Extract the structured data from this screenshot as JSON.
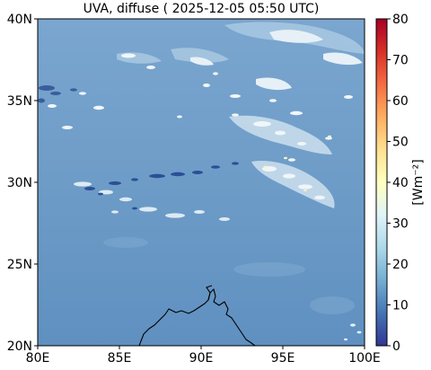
{
  "title": "UVA, diffuse ( 2025-12-05 05:50 UTC)",
  "map": {
    "x_ticks": [
      "80E",
      "85E",
      "90E",
      "95E",
      "100E"
    ],
    "y_ticks": [
      "20N",
      "25N",
      "30N",
      "35N",
      "40N"
    ],
    "lon_range": [
      80,
      100
    ],
    "lat_range": [
      20,
      40
    ]
  },
  "colorbar": {
    "label": "[Wm⁻²]",
    "ticks": [
      "0",
      "10",
      "20",
      "30",
      "40",
      "50",
      "60",
      "70",
      "80"
    ],
    "range": [
      0,
      80
    ],
    "colormap": "RdYlBu_r",
    "colors": [
      "#313695",
      "#4575b4",
      "#74add1",
      "#abd9e9",
      "#e0f3f8",
      "#ffffbf",
      "#fee090",
      "#fdae61",
      "#f46d43",
      "#d73027",
      "#a50026"
    ]
  },
  "colors": {
    "field_base": "#6b9bc6",
    "cloud_bright": "#eef5f8",
    "cloud_mid": "#bcd6e8",
    "shadow_dark": "#2c4f96",
    "coastline": "#000000"
  }
}
